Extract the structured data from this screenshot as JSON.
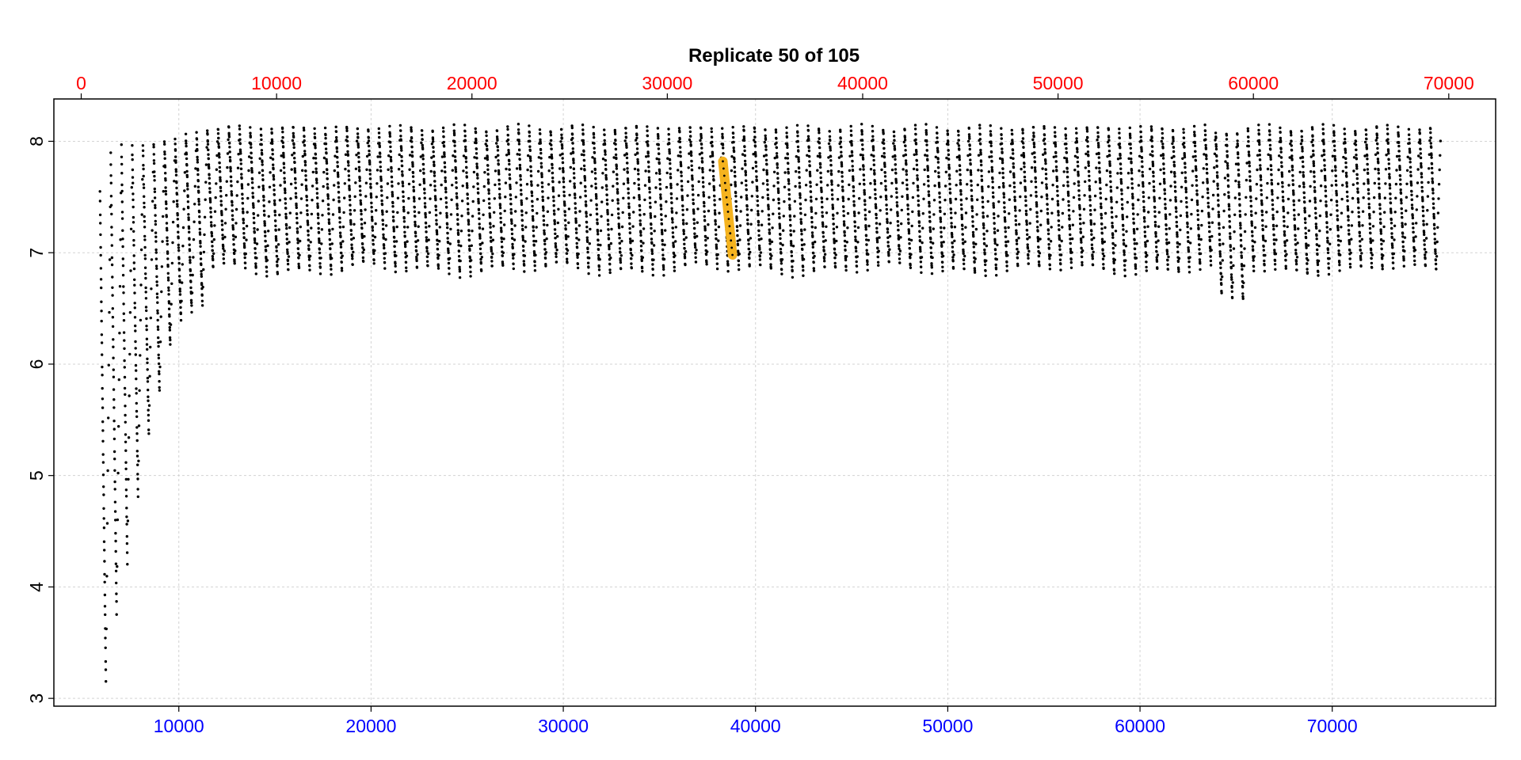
{
  "chart_data": {
    "type": "scatter",
    "title": "Replicate 50 of 105",
    "xlabel": "",
    "ylabel": "",
    "grid": true,
    "x_bottom": {
      "range": [
        3500,
        78500
      ],
      "ticks": [
        10000,
        20000,
        30000,
        40000,
        50000,
        60000,
        70000
      ],
      "tick_labels": [
        "10000",
        "20000",
        "30000",
        "40000",
        "50000",
        "60000",
        "70000"
      ],
      "color": "#0000ff"
    },
    "x_top": {
      "range": [
        -1400,
        72400
      ],
      "ticks": [
        0,
        10000,
        20000,
        30000,
        40000,
        50000,
        60000,
        70000
      ],
      "tick_labels": [
        "0",
        "10000",
        "20000",
        "30000",
        "40000",
        "50000",
        "60000",
        "70000"
      ],
      "color": "#ff0000"
    },
    "y": {
      "range": [
        2.93,
        8.38
      ],
      "ticks": [
        3,
        4,
        5,
        6,
        7,
        8
      ],
      "tick_labels": [
        "3",
        "4",
        "5",
        "6",
        "7",
        "8"
      ]
    },
    "series": [
      {
        "marker_color": "#000000",
        "pattern": "sawtooth",
        "x_start": 5900,
        "x_end": 75100,
        "cycle_count": 125,
        "cycles": [
          {
            "x": 5900,
            "y_start": 7.55,
            "y_end": 3.15
          },
          {
            "x": 6600,
            "y_start": 7.97,
            "y_end": 3.92
          },
          {
            "x": 7200,
            "y_start": 7.95,
            "y_end": 4.35
          },
          {
            "x": 7900,
            "y_start": 7.97,
            "y_end": 5.22
          },
          {
            "x": 8500,
            "y_start": 7.98,
            "y_end": 5.6
          },
          {
            "x": 9200,
            "y_start": 8.0,
            "y_end": 6.15
          },
          {
            "x": 9800,
            "y_start": 8.01,
            "y_end": 6.4
          },
          {
            "x": 10500,
            "y_start": 8.06,
            "y_end": 6.5
          },
          {
            "x": 11100,
            "y_start": 8.08,
            "y_end": 6.55
          },
          {
            "x": 15600,
            "y_start": 8.16,
            "y_end": 6.65
          },
          {
            "x": 64300,
            "y_start": 8.1,
            "y_end": 6.55
          },
          {
            "x": 75100,
            "y_start": 8.08,
            "y_end": 6.7
          }
        ],
        "plateau_y_top": 8.14,
        "plateau_y_bottom": 6.85
      }
    ],
    "highlight": {
      "color": "#f5b31f",
      "x_start": 38300,
      "x_end": 38800,
      "y_top": 7.82,
      "y_bottom": 6.98
    }
  }
}
